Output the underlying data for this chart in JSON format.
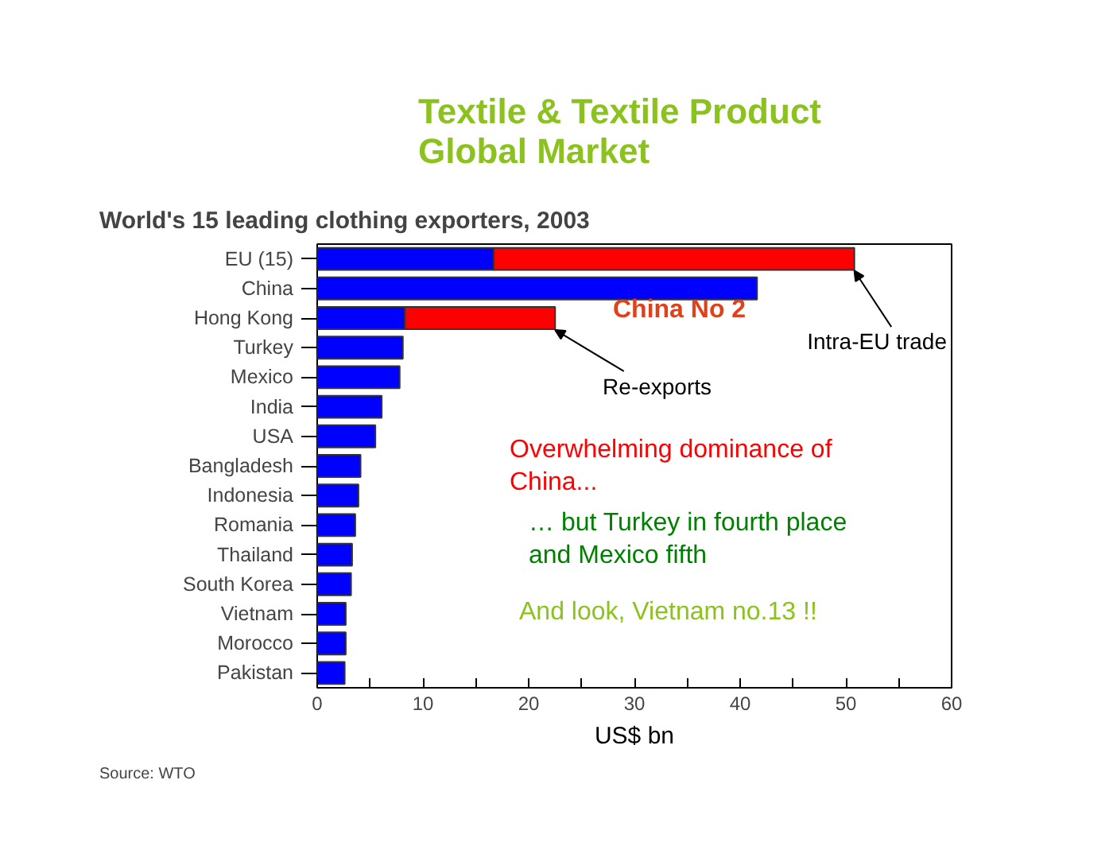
{
  "chart_data": {
    "type": "bar",
    "orientation": "horizontal",
    "stacked": true,
    "title": "Textile & Textile Product\nGlobal Market",
    "subtitle": "World's 15 leading clothing exporters, 2003",
    "xlabel": "US$ bn",
    "categories": [
      "EU (15)",
      "China",
      "Hong Kong",
      "Turkey",
      "Mexico",
      "India",
      "USA",
      "Bangladesh",
      "Indonesia",
      "Romania",
      "Thailand",
      "South Korea",
      "Vietnam",
      "Morocco",
      "Pakistan"
    ],
    "series": [
      {
        "color": "#0000ff",
        "values": [
          16.7,
          41.6,
          8.3,
          8.1,
          7.8,
          6.1,
          5.5,
          4.1,
          3.9,
          3.6,
          3.3,
          3.2,
          2.7,
          2.7,
          2.6
        ]
      },
      {
        "color": "#ff0000",
        "values": [
          34.1,
          null,
          14.2,
          null,
          null,
          null,
          null,
          null,
          null,
          null,
          null,
          null,
          null,
          null,
          null
        ]
      }
    ],
    "xlim": [
      0,
      60
    ],
    "xticks": [
      0,
      {
        "value": 5,
        "label": null
      },
      10,
      {
        "value": 15,
        "label": null
      },
      20,
      {
        "value": 25,
        "label": null
      },
      30,
      {
        "value": 35,
        "label": null
      },
      40,
      {
        "value": 45,
        "label": null
      },
      50,
      {
        "value": 55,
        "label": null
      },
      60
    ],
    "grid": false,
    "annotations": [
      {
        "text": "Intra-EU trade",
        "x": 50.8,
        "y": "EU (15)"
      },
      {
        "text": "Re-exports",
        "x": 22.5,
        "y": "Hong Kong"
      },
      "China No 2",
      "Overwhelming dominance of\nChina...",
      "… but Turkey in fourth place\nand Mexico fifth",
      "And look, Vietnam no.13 !!",
      "Source: WTO"
    ]
  }
}
